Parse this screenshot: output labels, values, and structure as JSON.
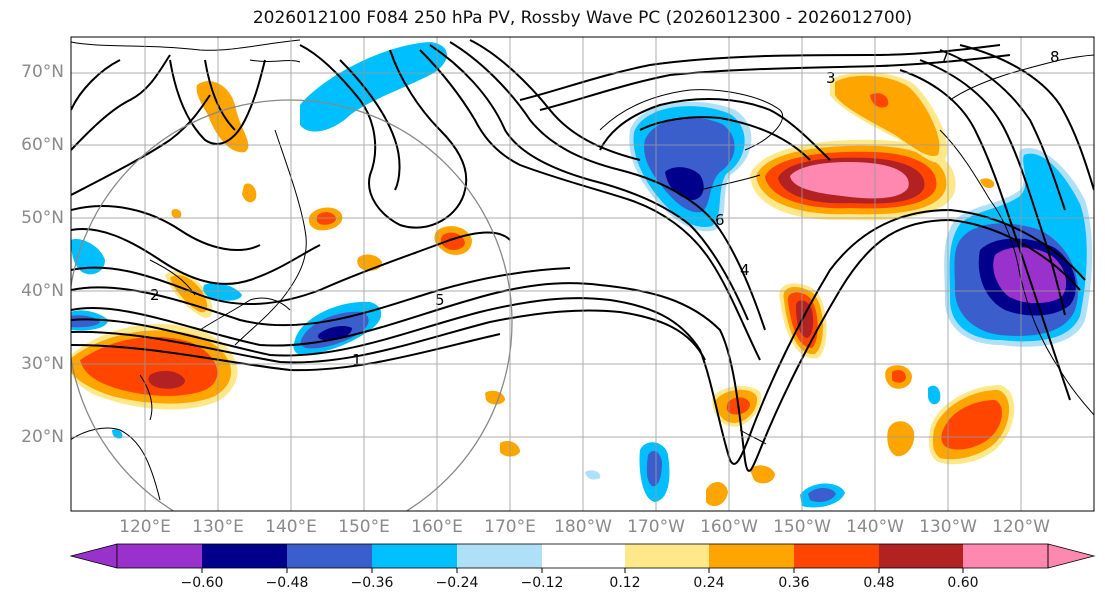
{
  "title": "2026012100 F084 250 hPa PV, Rossby Wave PC (2026012300 - 2026012700)",
  "lat_labels": [
    "70°N",
    "60°N",
    "50°N",
    "40°N",
    "30°N",
    "20°N"
  ],
  "lon_labels": [
    "120°E",
    "130°E",
    "140°E",
    "150°E",
    "160°E",
    "170°E",
    "180°W",
    "170°W",
    "160°W",
    "150°W",
    "140°W",
    "130°W",
    "120°W"
  ],
  "colorbar": {
    "ticks": [
      "−0.60",
      "−0.48",
      "−0.36",
      "−0.24",
      "−0.12",
      "0.12",
      "0.24",
      "0.36",
      "0.48",
      "0.60"
    ],
    "colors": [
      "#9932cc",
      "#00008b",
      "#3a5fcd",
      "#00bfff",
      "#b0e0f8",
      "#ffffff",
      "#ffe88a",
      "#ffa500",
      "#ff4500",
      "#b22222",
      "#ff88b0",
      "#ff88b0"
    ]
  },
  "pv_contour_labels": [
    "2",
    "4",
    "5",
    "6",
    "1",
    "3",
    "7",
    "8"
  ],
  "colors": {
    "purple": "#9932cc",
    "navy": "#00008b",
    "blue": "#3a5fcd",
    "sky": "#00bfff",
    "pale_blue": "#b0e0f8",
    "pale_yellow": "#ffe88a",
    "orange": "#ffa500",
    "red_orange": "#ff4500",
    "firebrick": "#b22222",
    "pink": "#ff88b0"
  }
}
